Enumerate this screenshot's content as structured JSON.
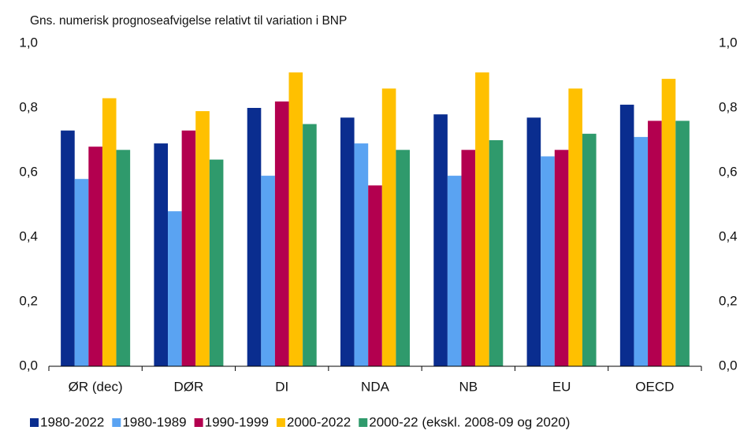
{
  "chart_data": {
    "type": "bar",
    "title": "Gns. numerisk prognoseafvigelse relativt til variation i BNP",
    "categories": [
      "ØR (dec)",
      "DØR",
      "DI",
      "NDA",
      "NB",
      "EU",
      "OECD"
    ],
    "series": [
      {
        "name": "1980-2022",
        "color": "#0a2d8f",
        "values": [
          0.73,
          0.69,
          0.8,
          0.77,
          0.78,
          0.77,
          0.81
        ]
      },
      {
        "name": "1980-1989",
        "color": "#5aa3f2",
        "values": [
          0.58,
          0.48,
          0.59,
          0.69,
          0.59,
          0.65,
          0.71
        ]
      },
      {
        "name": "1990-1999",
        "color": "#b3004f",
        "values": [
          0.68,
          0.73,
          0.82,
          0.56,
          0.67,
          0.67,
          0.76
        ]
      },
      {
        "name": "2000-2022",
        "color": "#ffc000",
        "values": [
          0.83,
          0.79,
          0.91,
          0.86,
          0.91,
          0.86,
          0.89
        ]
      },
      {
        "name": "2000-22 (ekskl. 2008-09 og 2020)",
        "color": "#2f9a6c",
        "values": [
          0.67,
          0.64,
          0.75,
          0.67,
          0.7,
          0.72,
          0.76
        ]
      }
    ],
    "ylim": [
      0,
      1
    ],
    "yticks": [
      {
        "value": 0,
        "label": "0,0"
      },
      {
        "value": 0.2,
        "label": "0,2"
      },
      {
        "value": 0.4,
        "label": "0,4"
      },
      {
        "value": 0.6,
        "label": "0,6"
      },
      {
        "value": 0.8,
        "label": "0,8"
      },
      {
        "value": 1,
        "label": "1,0"
      }
    ],
    "y2lim": [
      0,
      1
    ],
    "y2ticks": [
      {
        "value": 0,
        "label": "0,0"
      },
      {
        "value": 0.2,
        "label": "0,2"
      },
      {
        "value": 0.4,
        "label": "0,4"
      },
      {
        "value": 0.6,
        "label": "0,6"
      },
      {
        "value": 0.8,
        "label": "0,8"
      },
      {
        "value": 1,
        "label": "1,0"
      }
    ],
    "grid": false,
    "legend": "bottom"
  }
}
